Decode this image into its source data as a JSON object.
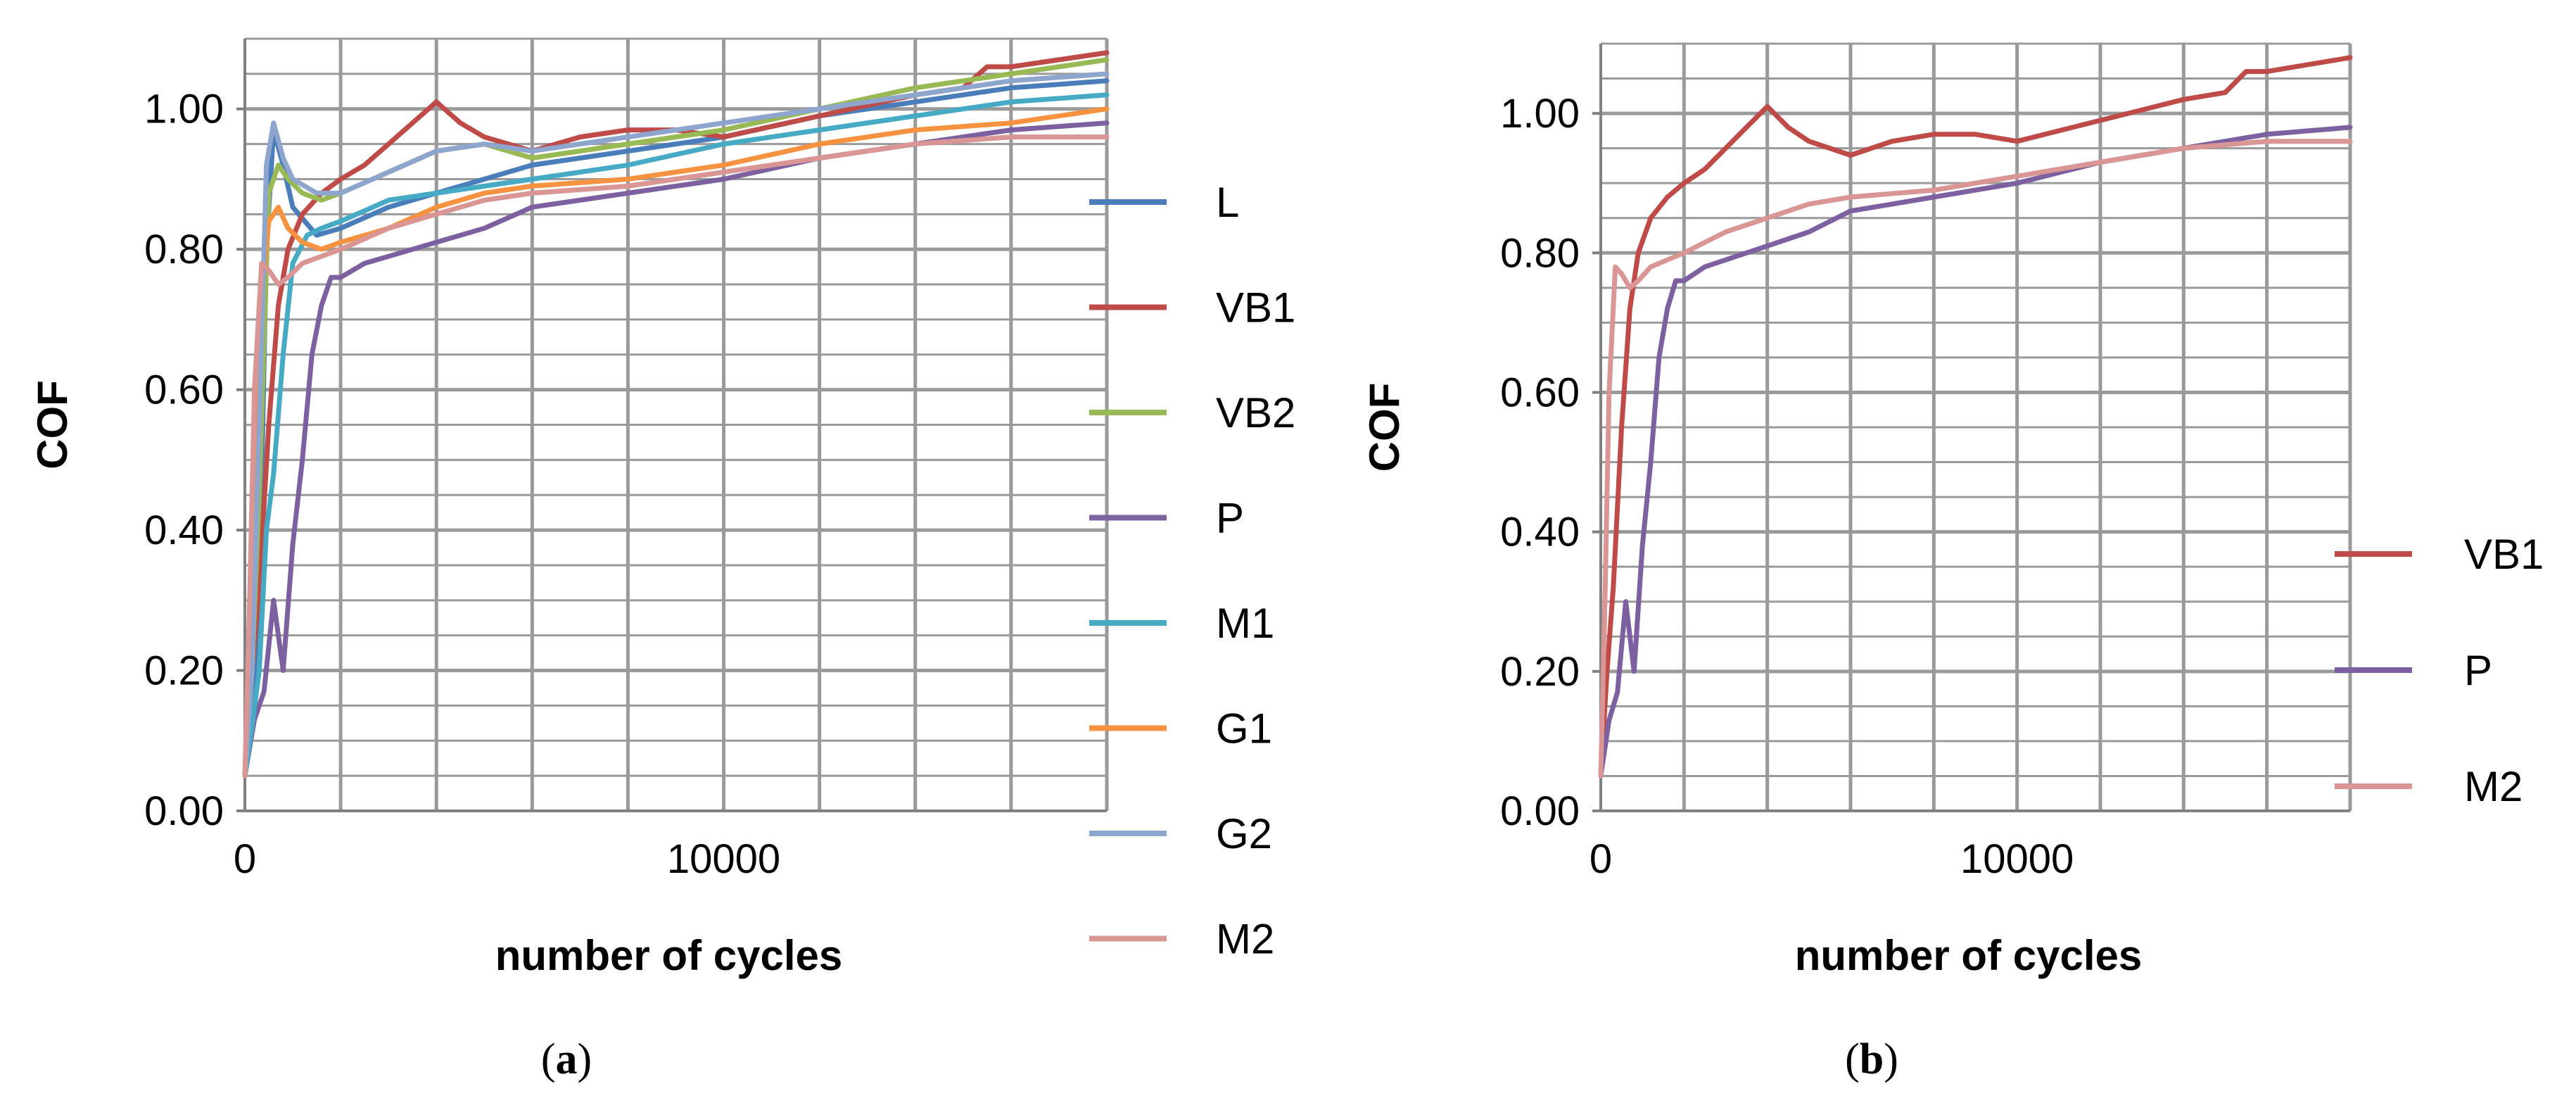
{
  "chart_data": [
    {
      "type": "line",
      "panel_label": "a",
      "xlabel": "number of cycles",
      "ylabel": "COF",
      "xlim": [
        0,
        18000
      ],
      "ylim": [
        0,
        1.1
      ],
      "x_ticks": [
        "0",
        "10000"
      ],
      "y_ticks": [
        "0.00",
        "0.20",
        "0.40",
        "0.60",
        "0.80",
        "1.00"
      ],
      "grid": true,
      "legend_position": "right",
      "series": [
        {
          "name": "L",
          "color": "#4A7EBB",
          "x": [
            0,
            150,
            300,
            450,
            600,
            800,
            1000,
            1500,
            2000,
            3000,
            4000,
            5000,
            6000,
            8000,
            10000,
            12000,
            14000,
            16000,
            18000
          ],
          "y": [
            0.05,
            0.14,
            0.3,
            0.8,
            0.97,
            0.92,
            0.86,
            0.82,
            0.83,
            0.86,
            0.88,
            0.9,
            0.92,
            0.94,
            0.96,
            0.99,
            1.01,
            1.03,
            1.04
          ]
        },
        {
          "name": "VB1",
          "color": "#BE4B48",
          "x": [
            0,
            150,
            300,
            500,
            700,
            900,
            1200,
            1600,
            2000,
            2500,
            3000,
            3500,
            4000,
            4500,
            5000,
            6000,
            7000,
            8000,
            9000,
            10000,
            12000,
            14000,
            15000,
            15500,
            16000,
            17000,
            18000
          ],
          "y": [
            0.05,
            0.2,
            0.32,
            0.55,
            0.72,
            0.8,
            0.85,
            0.88,
            0.9,
            0.92,
            0.95,
            0.98,
            1.01,
            0.98,
            0.96,
            0.94,
            0.96,
            0.97,
            0.97,
            0.96,
            0.99,
            1.02,
            1.03,
            1.06,
            1.06,
            1.07,
            1.08
          ]
        },
        {
          "name": "VB2",
          "color": "#98B954",
          "x": [
            0,
            150,
            300,
            500,
            700,
            900,
            1200,
            1600,
            2000,
            3000,
            4000,
            5000,
            6000,
            8000,
            10000,
            12000,
            14000,
            16000,
            18000
          ],
          "y": [
            0.05,
            0.2,
            0.45,
            0.88,
            0.92,
            0.9,
            0.88,
            0.87,
            0.88,
            0.91,
            0.94,
            0.95,
            0.93,
            0.95,
            0.97,
            1.0,
            1.03,
            1.05,
            1.07
          ]
        },
        {
          "name": "P",
          "color": "#7D60A0",
          "x": [
            0,
            200,
            400,
            600,
            800,
            1000,
            1200,
            1400,
            1600,
            1800,
            2000,
            2500,
            3000,
            4000,
            5000,
            6000,
            7000,
            8000,
            10000,
            12000,
            14000,
            16000,
            18000
          ],
          "y": [
            0.05,
            0.13,
            0.17,
            0.3,
            0.2,
            0.38,
            0.5,
            0.65,
            0.72,
            0.76,
            0.76,
            0.78,
            0.79,
            0.81,
            0.83,
            0.86,
            0.87,
            0.88,
            0.9,
            0.93,
            0.95,
            0.97,
            0.98
          ]
        },
        {
          "name": "M1",
          "color": "#46AAC5",
          "x": [
            0,
            150,
            300,
            450,
            600,
            800,
            1000,
            1300,
            1600,
            2000,
            3000,
            4000,
            5000,
            6000,
            8000,
            10000,
            12000,
            14000,
            16000,
            18000
          ],
          "y": [
            0.05,
            0.12,
            0.2,
            0.4,
            0.48,
            0.65,
            0.78,
            0.82,
            0.83,
            0.84,
            0.87,
            0.88,
            0.89,
            0.9,
            0.92,
            0.95,
            0.97,
            0.99,
            1.01,
            1.02
          ]
        },
        {
          "name": "G1",
          "color": "#F69240",
          "x": [
            0,
            150,
            300,
            500,
            700,
            900,
            1200,
            1600,
            2000,
            3000,
            4000,
            5000,
            6000,
            8000,
            10000,
            12000,
            14000,
            16000,
            18000
          ],
          "y": [
            0.05,
            0.35,
            0.7,
            0.84,
            0.86,
            0.83,
            0.81,
            0.8,
            0.81,
            0.83,
            0.86,
            0.88,
            0.89,
            0.9,
            0.92,
            0.95,
            0.97,
            0.98,
            1.0
          ]
        },
        {
          "name": "G2",
          "color": "#8EA5CE",
          "x": [
            0,
            150,
            300,
            450,
            600,
            800,
            1000,
            1500,
            2000,
            3000,
            4000,
            5000,
            6000,
            8000,
            10000,
            12000,
            14000,
            16000,
            18000
          ],
          "y": [
            0.05,
            0.2,
            0.55,
            0.92,
            0.98,
            0.93,
            0.9,
            0.88,
            0.88,
            0.91,
            0.94,
            0.95,
            0.94,
            0.96,
            0.98,
            1.0,
            1.02,
            1.04,
            1.05
          ]
        },
        {
          "name": "M2",
          "color": "#D99694",
          "x": [
            0,
            100,
            200,
            350,
            500,
            700,
            900,
            1200,
            1600,
            2000,
            3000,
            4000,
            5000,
            6000,
            8000,
            10000,
            12000,
            14000,
            16000,
            18000
          ],
          "y": [
            0.05,
            0.3,
            0.6,
            0.78,
            0.77,
            0.75,
            0.76,
            0.78,
            0.79,
            0.8,
            0.83,
            0.85,
            0.87,
            0.88,
            0.89,
            0.91,
            0.93,
            0.95,
            0.96,
            0.96
          ]
        }
      ]
    },
    {
      "type": "line",
      "panel_label": "b",
      "xlabel": "number of cycles",
      "ylabel": "COF",
      "xlim": [
        0,
        18000
      ],
      "ylim": [
        0,
        1.1
      ],
      "x_ticks": [
        "0",
        "10000"
      ],
      "y_ticks": [
        "0.00",
        "0.20",
        "0.40",
        "0.60",
        "0.80",
        "1.00"
      ],
      "grid": true,
      "legend_position": "right",
      "series": [
        {
          "name": "VB1",
          "color": "#BE4B48",
          "x": [
            0,
            150,
            300,
            500,
            700,
            900,
            1200,
            1600,
            2000,
            2500,
            3000,
            3500,
            4000,
            4500,
            5000,
            6000,
            7000,
            8000,
            9000,
            10000,
            12000,
            14000,
            15000,
            15500,
            16000,
            17000,
            18000
          ],
          "y": [
            0.05,
            0.2,
            0.32,
            0.55,
            0.72,
            0.8,
            0.85,
            0.88,
            0.9,
            0.92,
            0.95,
            0.98,
            1.01,
            0.98,
            0.96,
            0.94,
            0.96,
            0.97,
            0.97,
            0.96,
            0.99,
            1.02,
            1.03,
            1.06,
            1.06,
            1.07,
            1.08
          ]
        },
        {
          "name": "P",
          "color": "#7D60A0",
          "x": [
            0,
            200,
            400,
            600,
            800,
            1000,
            1200,
            1400,
            1600,
            1800,
            2000,
            2500,
            3000,
            4000,
            5000,
            6000,
            7000,
            8000,
            10000,
            12000,
            14000,
            16000,
            18000
          ],
          "y": [
            0.05,
            0.13,
            0.17,
            0.3,
            0.2,
            0.38,
            0.5,
            0.65,
            0.72,
            0.76,
            0.76,
            0.78,
            0.79,
            0.81,
            0.83,
            0.86,
            0.87,
            0.88,
            0.9,
            0.93,
            0.95,
            0.97,
            0.98
          ]
        },
        {
          "name": "M2",
          "color": "#D99694",
          "x": [
            0,
            100,
            200,
            350,
            500,
            700,
            900,
            1200,
            1600,
            2000,
            3000,
            4000,
            5000,
            6000,
            8000,
            10000,
            12000,
            14000,
            16000,
            18000
          ],
          "y": [
            0.05,
            0.3,
            0.6,
            0.78,
            0.77,
            0.75,
            0.76,
            0.78,
            0.79,
            0.8,
            0.83,
            0.85,
            0.87,
            0.88,
            0.89,
            0.91,
            0.93,
            0.95,
            0.96,
            0.96
          ]
        }
      ]
    }
  ]
}
